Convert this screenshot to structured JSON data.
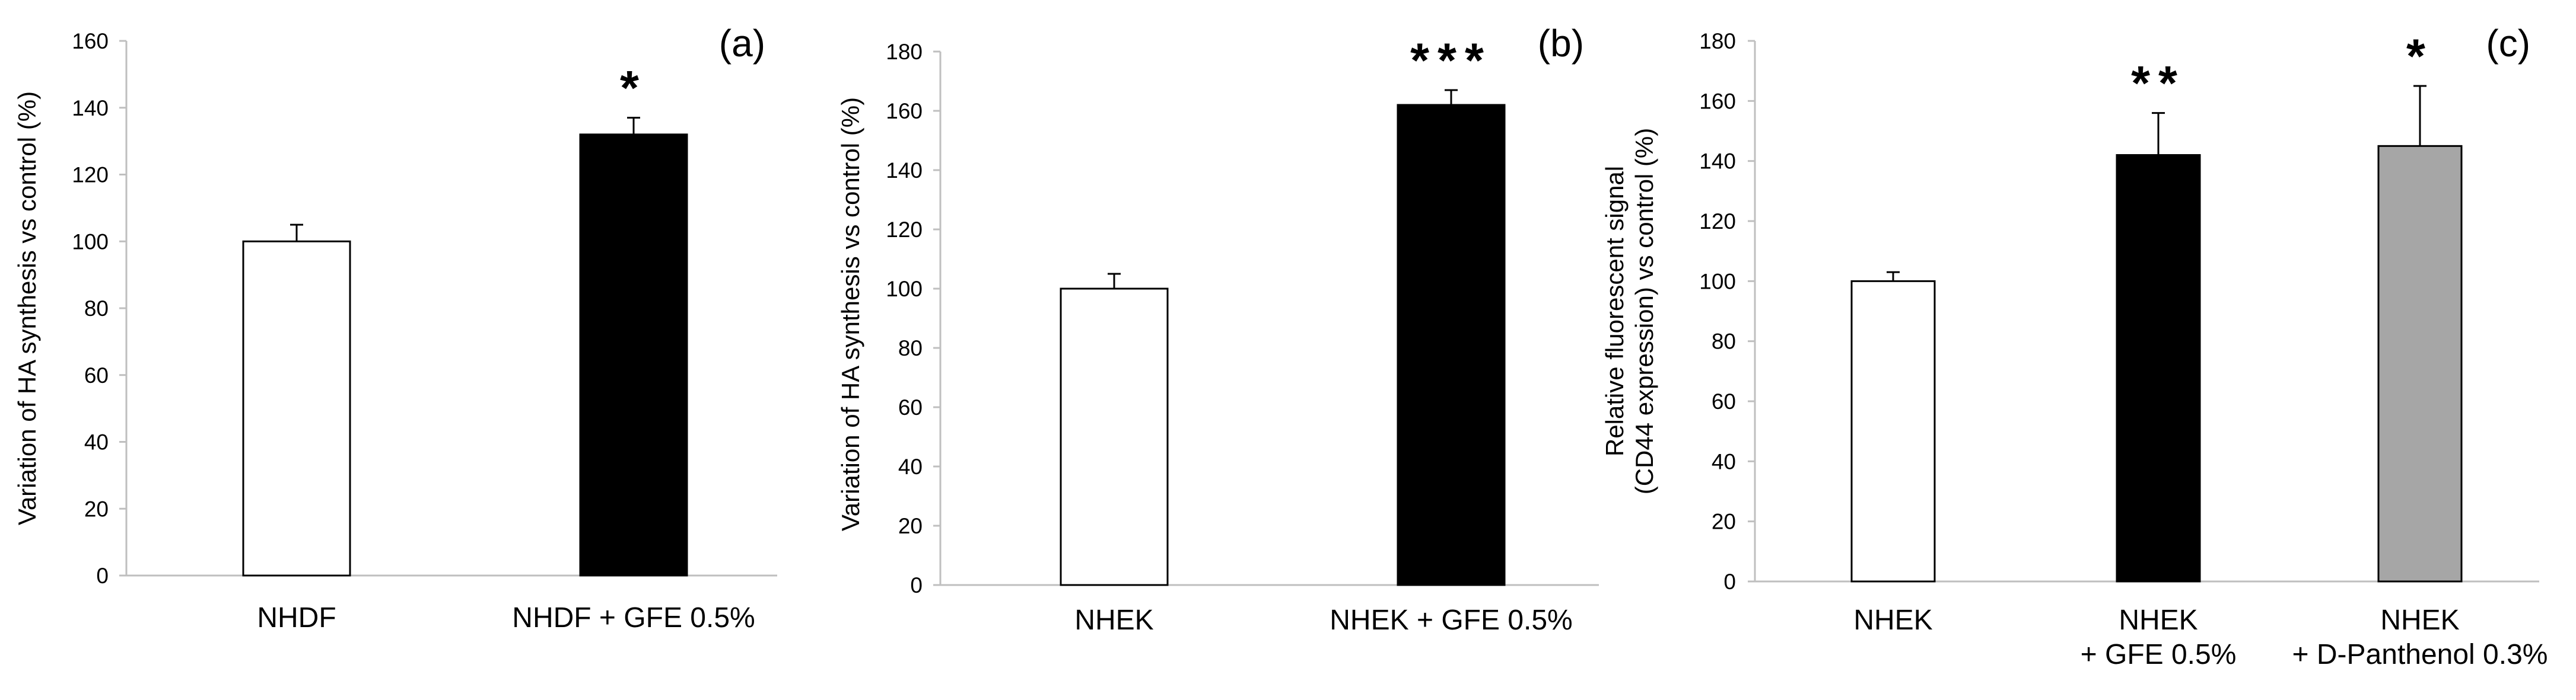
{
  "chart_data": [
    {
      "type": "bar",
      "panel_label": "(a)",
      "ylabel": "Variation of HA synthesis vs control (%)",
      "xlabel": "",
      "ylim": [
        0,
        160
      ],
      "yticks": [
        0,
        20,
        40,
        60,
        80,
        100,
        120,
        140,
        160
      ],
      "grid": false,
      "categories": [
        [
          "NHDF"
        ],
        [
          "NHDF + GFE 0.5%"
        ]
      ],
      "values": [
        100,
        132
      ],
      "errors": [
        5,
        5
      ],
      "colors": [
        "#ffffff",
        "#000000"
      ],
      "significance": [
        "",
        "*"
      ]
    },
    {
      "type": "bar",
      "panel_label": "(b)",
      "ylabel": "Variation of HA synthesis vs control (%)",
      "xlabel": "",
      "ylim": [
        0,
        180
      ],
      "yticks": [
        0,
        20,
        40,
        60,
        80,
        100,
        120,
        140,
        160,
        180
      ],
      "grid": false,
      "categories": [
        [
          "NHEK"
        ],
        [
          "NHEK + GFE 0.5%"
        ]
      ],
      "values": [
        100,
        162
      ],
      "errors": [
        5,
        5
      ],
      "colors": [
        "#ffffff",
        "#000000"
      ],
      "significance": [
        "",
        "***"
      ]
    },
    {
      "type": "bar",
      "panel_label": "(c)",
      "ylabel": [
        "Relative fluorescent signal",
        "(CD44 expression) vs control (%)"
      ],
      "xlabel": "",
      "ylim": [
        0,
        180
      ],
      "yticks": [
        0,
        20,
        40,
        60,
        80,
        100,
        120,
        140,
        160,
        180
      ],
      "grid": false,
      "categories": [
        [
          "NHEK"
        ],
        [
          "NHEK",
          "+ GFE 0.5%"
        ],
        [
          "NHEK",
          "+ D-Panthenol 0.3%"
        ]
      ],
      "values": [
        100,
        142,
        145
      ],
      "errors": [
        3,
        14,
        20
      ],
      "colors": [
        "#ffffff",
        "#000000",
        "#a6a6a6"
      ],
      "significance": [
        "",
        "**",
        "*"
      ]
    }
  ],
  "colors": {
    "axis": "#bfbfbf",
    "bar_outline": "#000000",
    "error_bar": "#000000"
  }
}
